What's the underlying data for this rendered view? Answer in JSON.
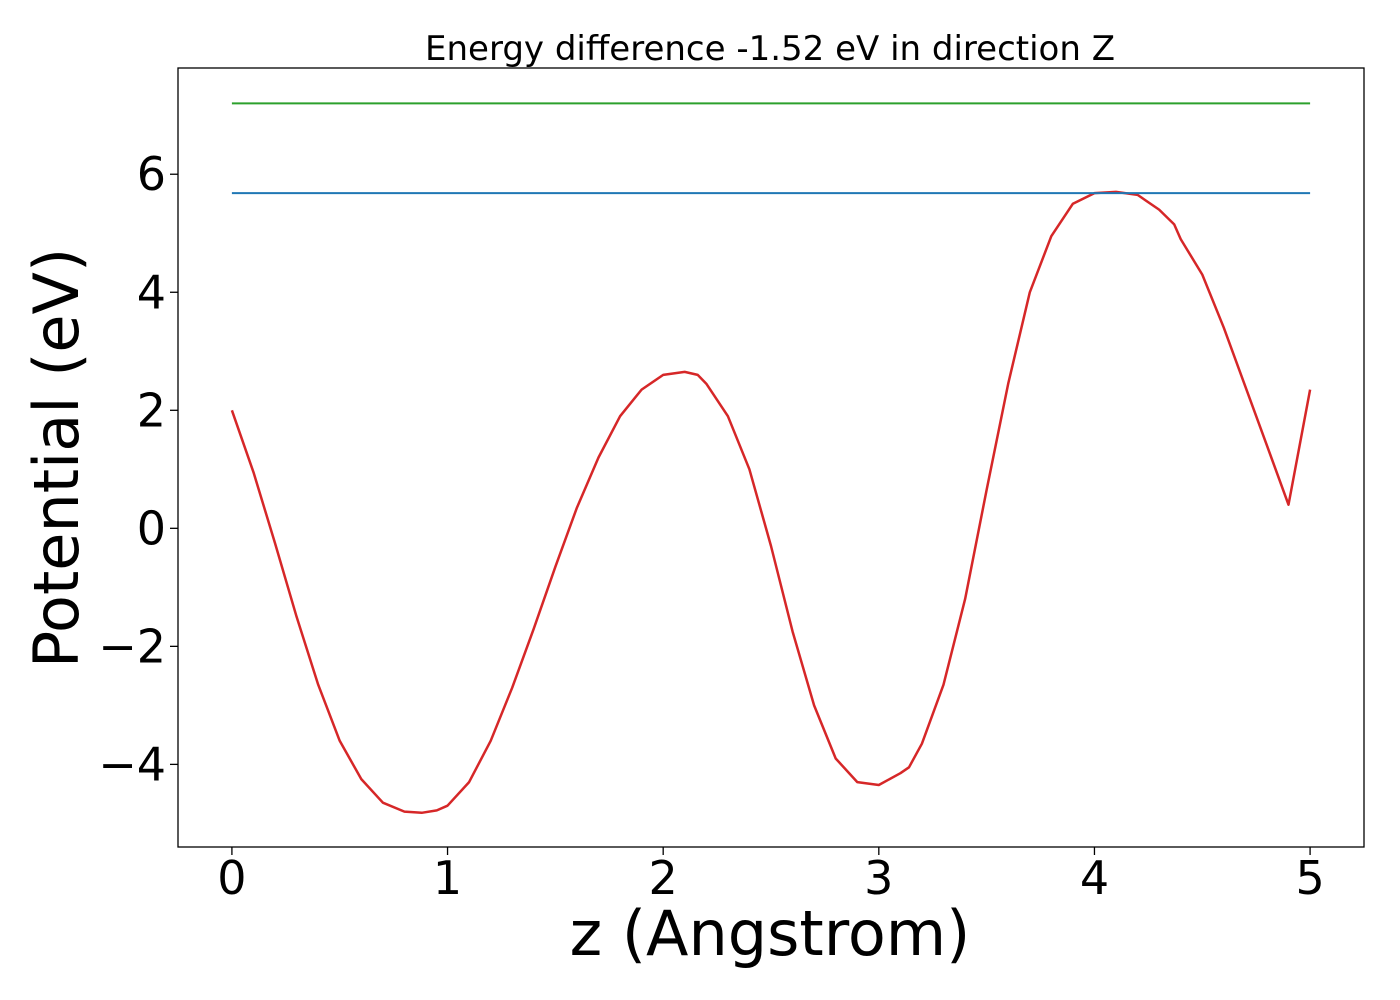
{
  "chart_data": {
    "type": "line",
    "title": "Energy difference -1.52 eV in direction Z",
    "xlabel": "z (Angstrom)",
    "ylabel": "Potential (eV)",
    "xlim": [
      -0.25,
      5.25
    ],
    "ylim": [
      -5.4,
      7.8
    ],
    "xticks": [
      0,
      1,
      2,
      3,
      4,
      5
    ],
    "xtick_labels": [
      "0",
      "1",
      "2",
      "3",
      "4",
      "5"
    ],
    "yticks": [
      -4,
      -2,
      0,
      2,
      4,
      6
    ],
    "ytick_labels": [
      "−4",
      "−2",
      "0",
      "2",
      "4",
      "6"
    ],
    "grid": false,
    "series": [
      {
        "color": "#d62728",
        "x": [
          0,
          0.1,
          0.2,
          0.3,
          0.4,
          0.5,
          0.6,
          0.7,
          0.8,
          0.88,
          0.95,
          1.0,
          1.1,
          1.2,
          1.3,
          1.4,
          1.5,
          1.6,
          1.7,
          1.8,
          1.9,
          2.0,
          2.1,
          2.16,
          2.2,
          2.3,
          2.4,
          2.5,
          2.6,
          2.7,
          2.8,
          2.9,
          3.0,
          3.1,
          3.14,
          3.2,
          3.3,
          3.4,
          3.5,
          3.6,
          3.7,
          3.8,
          3.9,
          4.0,
          4.1,
          4.2,
          4.3,
          4.37,
          4.4,
          4.5,
          4.6,
          4.7,
          4.8,
          4.9,
          5.0
        ],
        "y": [
          2.0,
          0.95,
          -0.25,
          -1.5,
          -2.65,
          -3.6,
          -4.25,
          -4.65,
          -4.8,
          -4.82,
          -4.78,
          -4.7,
          -4.3,
          -3.6,
          -2.7,
          -1.7,
          -0.65,
          0.35,
          1.2,
          1.9,
          2.35,
          2.6,
          2.65,
          2.6,
          2.45,
          1.9,
          1.0,
          -0.3,
          -1.75,
          -3.0,
          -3.9,
          -4.3,
          -4.35,
          -4.15,
          -4.05,
          -3.65,
          -2.65,
          -1.2,
          0.65,
          2.45,
          4.0,
          4.95,
          5.5,
          5.68,
          5.7,
          5.65,
          5.4,
          5.15,
          4.9,
          4.3,
          3.4,
          2.4,
          1.4,
          0.4,
          2.35
        ]
      },
      {
        "color": "#1f77b4",
        "x": [
          0,
          5
        ],
        "y": [
          5.68,
          5.68
        ]
      },
      {
        "color": "#2ca02c",
        "x": [
          0,
          5
        ],
        "y": [
          7.2,
          7.2
        ]
      }
    ]
  }
}
